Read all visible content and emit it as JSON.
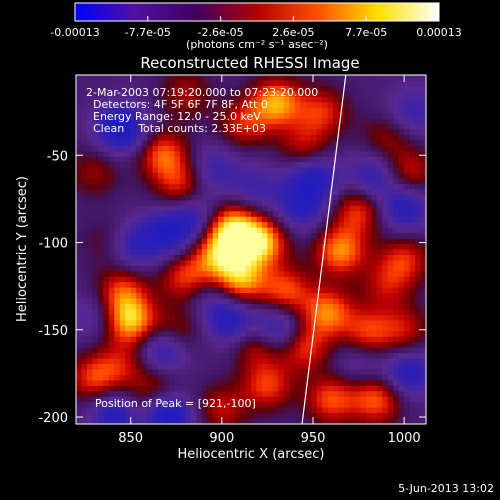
{
  "chart_data": {
    "type": "heatmap",
    "title": "Reconstructed RHESSI Image",
    "colorbar": {
      "ticks": [
        "-0.00013",
        "-7.7e-05",
        "-2.6e-05",
        "2.6e-05",
        "7.7e-05",
        "0.00013"
      ],
      "units": "(photons cm⁻² s⁻¹ asec⁻²)",
      "range": [
        -0.00013,
        0.00013
      ],
      "colors": [
        "#0000ff",
        "#5010a0",
        "#400060",
        "#b00000",
        "#ff5000",
        "#ffe000",
        "#ffffff"
      ]
    },
    "xlabel": "Heliocentric X (arcsec)",
    "ylabel": "Heliocentric Y (arcsec)",
    "xlim": [
      820,
      1012
    ],
    "ylim": [
      -204,
      -4
    ],
    "xticks": [
      850,
      900,
      950,
      1000
    ],
    "yticks": [
      -50,
      -100,
      -150,
      -200
    ],
    "annotations": [
      "2-Mar-2003 07:19:20.000 to 07:23:20.000",
      "Detectors: 4F 5F 6F 7F 8F, Att 0",
      "Energy Range: 12.0 - 25.0 keV",
      "Clean    Total counts: 2.33E+03"
    ],
    "peak_label": "Position of Peak = [921,-100]",
    "peak": [
      921,
      -100
    ],
    "limb_line": [
      [
        944,
        -204
      ],
      [
        968,
        -4
      ]
    ],
    "grid": false,
    "footer_date": "5-Jun-2013 13:02",
    "blobs": [
      {
        "x": 921,
        "y": -100,
        "v": 1.0
      },
      {
        "x": 905,
        "y": -92,
        "v": 0.95
      },
      {
        "x": 910,
        "y": -122,
        "v": 0.85
      },
      {
        "x": 898,
        "y": -108,
        "v": 0.75
      },
      {
        "x": 935,
        "y": -128,
        "v": 0.65
      },
      {
        "x": 880,
        "y": -120,
        "v": 0.6
      },
      {
        "x": 850,
        "y": -145,
        "v": 0.92
      },
      {
        "x": 845,
        "y": -128,
        "v": 0.6
      },
      {
        "x": 875,
        "y": -152,
        "v": 0.45
      },
      {
        "x": 830,
        "y": -178,
        "v": 0.6
      },
      {
        "x": 845,
        "y": -170,
        "v": 0.4
      },
      {
        "x": 868,
        "y": -50,
        "v": 0.7
      },
      {
        "x": 878,
        "y": -68,
        "v": 0.55
      },
      {
        "x": 830,
        "y": -60,
        "v": 0.35
      },
      {
        "x": 880,
        "y": -15,
        "v": 0.4
      },
      {
        "x": 912,
        "y": -32,
        "v": 0.5
      },
      {
        "x": 930,
        "y": -20,
        "v": 0.85
      },
      {
        "x": 955,
        "y": -25,
        "v": 0.55
      },
      {
        "x": 945,
        "y": -45,
        "v": 0.45
      },
      {
        "x": 965,
        "y": -105,
        "v": 0.8
      },
      {
        "x": 975,
        "y": -82,
        "v": 0.6
      },
      {
        "x": 958,
        "y": -140,
        "v": 0.75
      },
      {
        "x": 980,
        "y": -152,
        "v": 0.6
      },
      {
        "x": 945,
        "y": -160,
        "v": 0.6
      },
      {
        "x": 920,
        "y": -158,
        "v": 0.55
      },
      {
        "x": 925,
        "y": -182,
        "v": 0.6
      },
      {
        "x": 900,
        "y": -195,
        "v": 0.45
      },
      {
        "x": 960,
        "y": -190,
        "v": 0.65
      },
      {
        "x": 985,
        "y": -190,
        "v": 0.7
      },
      {
        "x": 1000,
        "y": -110,
        "v": 0.55
      },
      {
        "x": 1003,
        "y": -60,
        "v": 0.5
      },
      {
        "x": 1000,
        "y": -150,
        "v": 0.45
      },
      {
        "x": 990,
        "y": -40,
        "v": 0.35
      },
      {
        "x": 865,
        "y": -180,
        "v": 0.35
      },
      {
        "x": 838,
        "y": -100,
        "v": 0.3
      },
      {
        "x": 855,
        "y": -195,
        "v": 0.35
      },
      {
        "x": 990,
        "y": -125,
        "v": 0.4
      },
      {
        "x": 845,
        "y": -35,
        "v": -0.8
      },
      {
        "x": 870,
        "y": -95,
        "v": -0.6
      },
      {
        "x": 850,
        "y": -102,
        "v": -0.5
      },
      {
        "x": 895,
        "y": -130,
        "v": -0.3
      },
      {
        "x": 868,
        "y": -162,
        "v": -0.7
      },
      {
        "x": 905,
        "y": -145,
        "v": -0.6
      },
      {
        "x": 870,
        "y": -200,
        "v": -0.85
      },
      {
        "x": 842,
        "y": -198,
        "v": -0.7
      },
      {
        "x": 885,
        "y": -85,
        "v": -0.5
      },
      {
        "x": 950,
        "y": -63,
        "v": -0.6
      },
      {
        "x": 943,
        "y": -80,
        "v": -0.5
      },
      {
        "x": 930,
        "y": -150,
        "v": -0.7
      },
      {
        "x": 1000,
        "y": -80,
        "v": -0.6
      },
      {
        "x": 983,
        "y": -62,
        "v": -0.5
      },
      {
        "x": 1002,
        "y": -175,
        "v": -0.6
      },
      {
        "x": 830,
        "y": -142,
        "v": -0.3
      },
      {
        "x": 895,
        "y": -58,
        "v": -0.4
      },
      {
        "x": 918,
        "y": -68,
        "v": -0.35
      },
      {
        "x": 1005,
        "y": -25,
        "v": -0.4
      },
      {
        "x": 975,
        "y": -168,
        "v": -0.3
      }
    ]
  }
}
